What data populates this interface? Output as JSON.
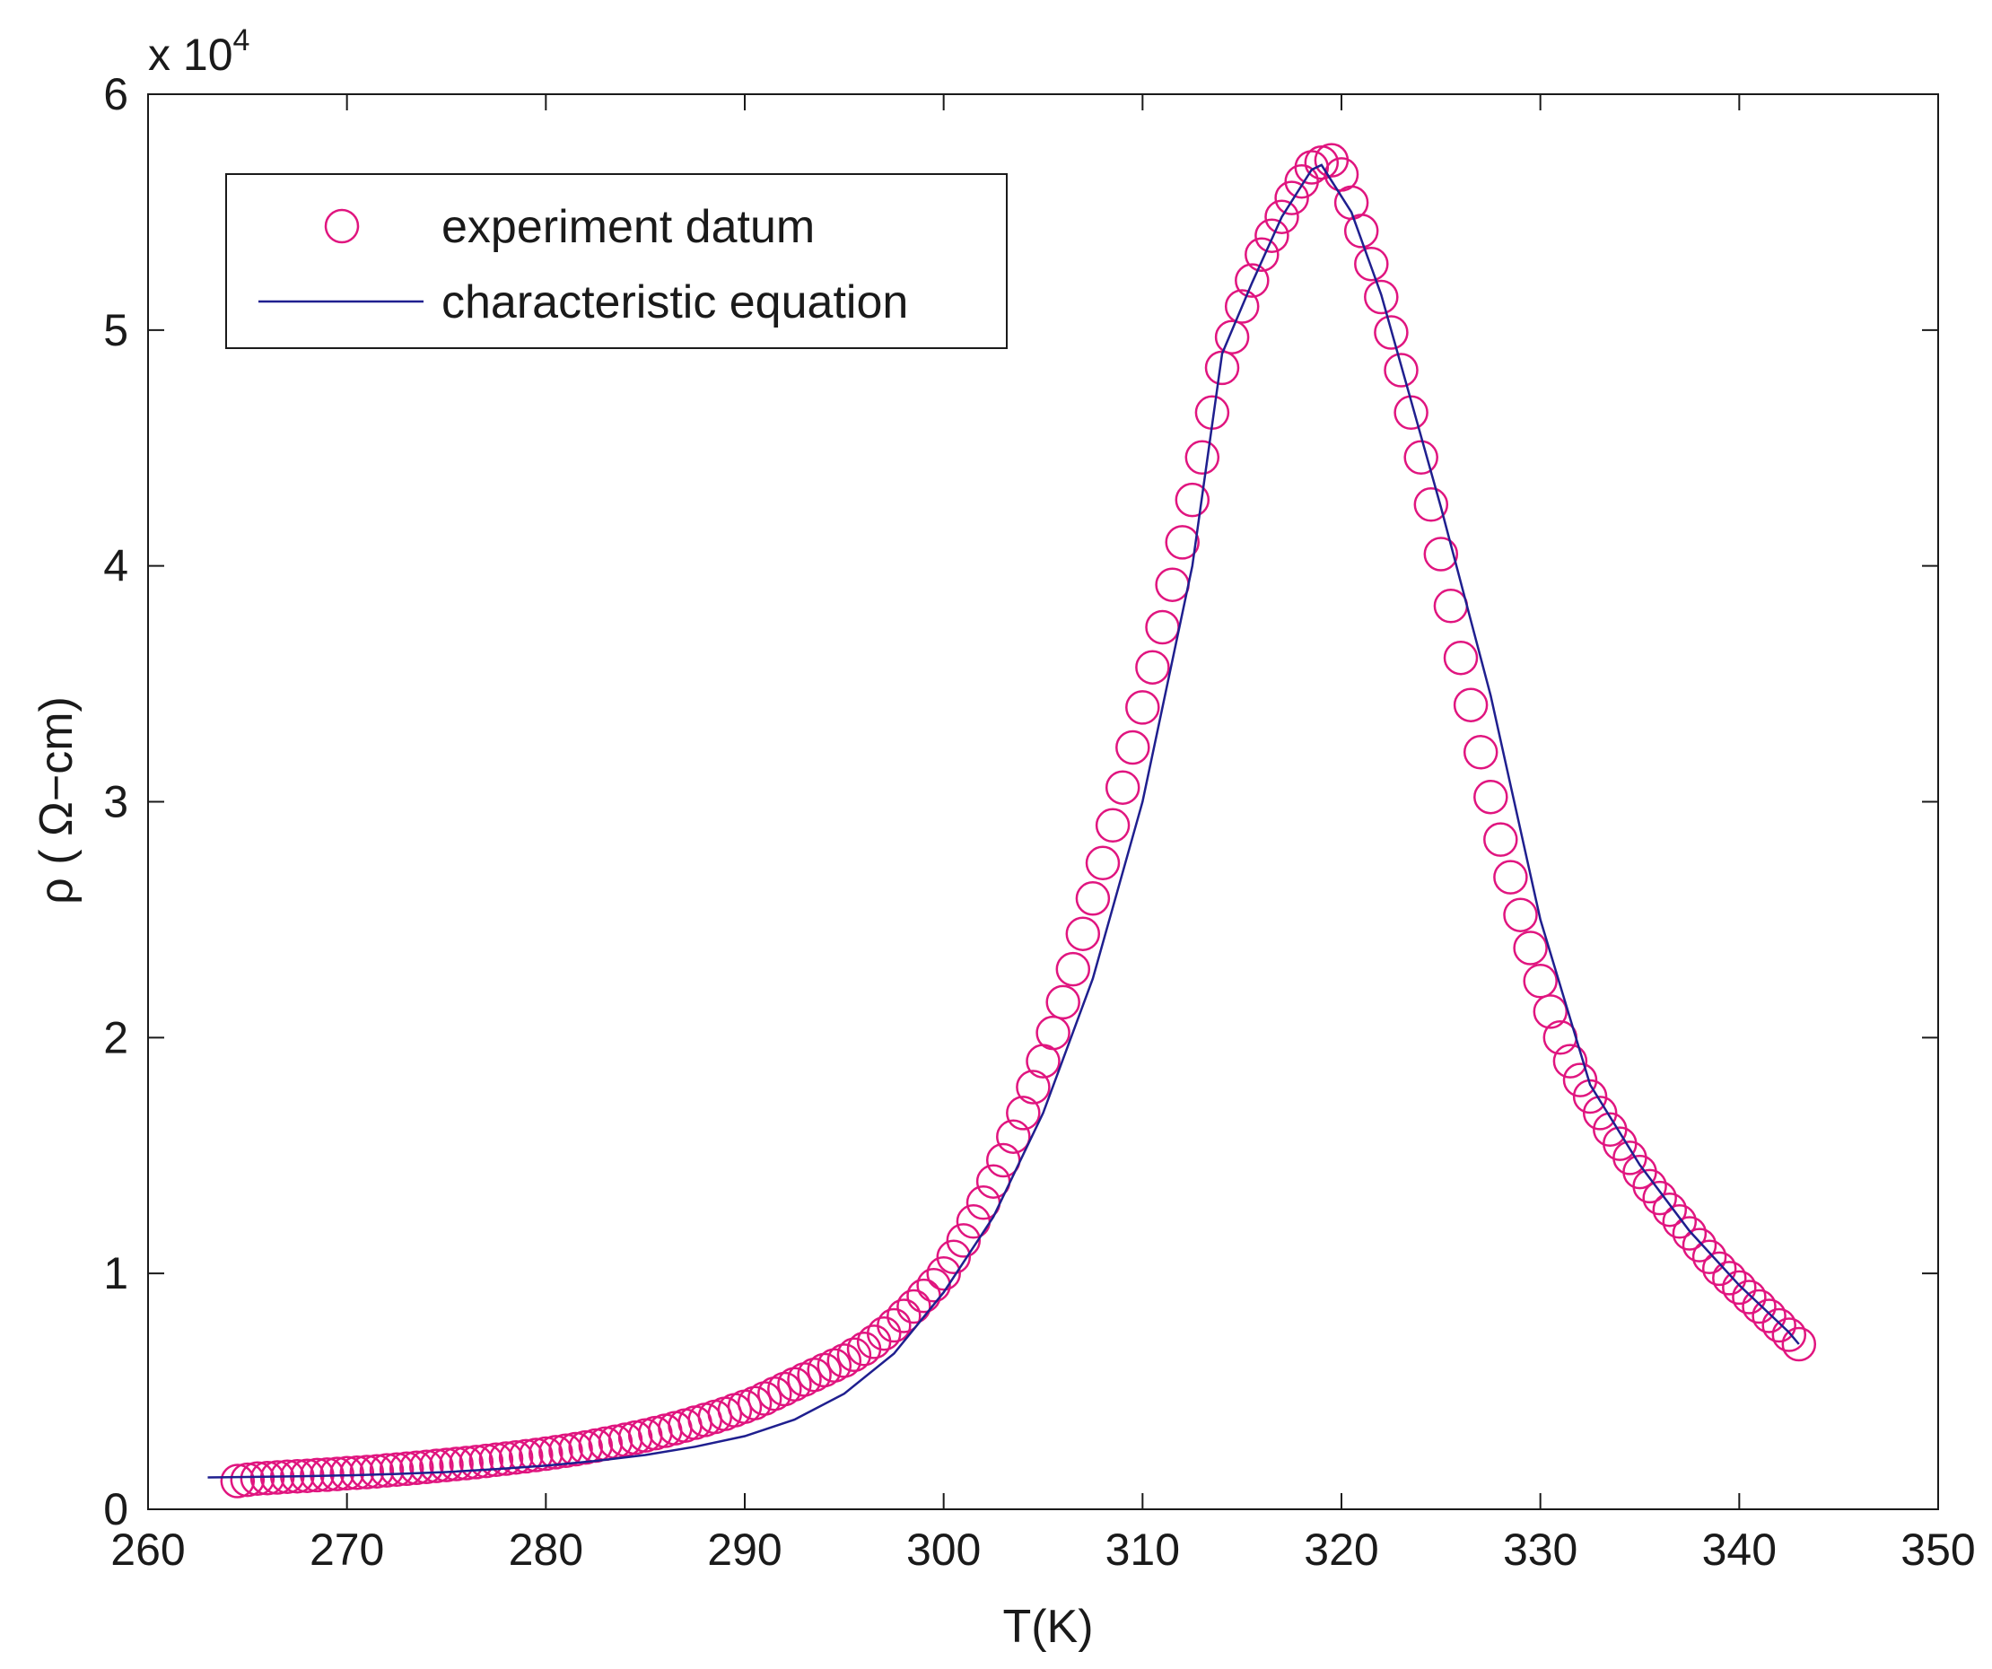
{
  "chart_data": {
    "type": "scatter",
    "title": "",
    "xlabel": "T(K)",
    "ylabel": "ρ ( Ω−cm)",
    "y_multiplier_label": "x 10",
    "y_multiplier_exponent": "4",
    "xlim": [
      260,
      350
    ],
    "ylim": [
      0,
      60000
    ],
    "x_ticks": [
      260,
      270,
      280,
      290,
      300,
      310,
      320,
      330,
      340,
      350
    ],
    "y_ticks": [
      0,
      10000,
      20000,
      30000,
      40000,
      50000,
      60000
    ],
    "x_tick_labels": [
      "260",
      "270",
      "280",
      "290",
      "300",
      "310",
      "320",
      "330",
      "340",
      "350"
    ],
    "y_tick_labels": [
      "0",
      "1",
      "2",
      "3",
      "4",
      "5",
      "6"
    ],
    "grid": false,
    "legend_position": "top-left",
    "series": [
      {
        "name": "experiment datum",
        "kind": "markers",
        "marker": "circle-open",
        "color": "#e0157f",
        "x": [
          264.5,
          265.0,
          265.5,
          266.0,
          266.5,
          267.0,
          267.5,
          268.0,
          268.5,
          269.0,
          269.5,
          270.0,
          270.5,
          271.0,
          271.5,
          272.0,
          272.5,
          273.0,
          273.5,
          274.0,
          274.5,
          275.0,
          275.5,
          276.0,
          276.5,
          277.0,
          277.5,
          278.0,
          278.5,
          279.0,
          279.5,
          280.0,
          280.5,
          281.0,
          281.5,
          282.0,
          282.5,
          283.0,
          283.5,
          284.0,
          284.5,
          285.0,
          285.5,
          286.0,
          286.5,
          287.0,
          287.5,
          288.0,
          288.5,
          289.0,
          289.5,
          290.0,
          290.5,
          291.0,
          291.5,
          292.0,
          292.5,
          293.0,
          293.5,
          294.0,
          294.5,
          295.0,
          295.5,
          296.0,
          296.5,
          297.0,
          297.5,
          298.0,
          298.5,
          299.0,
          299.5,
          300.0,
          300.5,
          301.0,
          301.5,
          302.0,
          302.5,
          303.0,
          303.5,
          304.0,
          304.5,
          305.0,
          305.5,
          306.0,
          306.5,
          307.0,
          307.5,
          308.0,
          308.5,
          309.0,
          309.5,
          310.0,
          310.5,
          311.0,
          311.5,
          312.0,
          312.5,
          313.0,
          313.5,
          314.0,
          314.5,
          315.0,
          315.5,
          316.0,
          316.5,
          317.0,
          317.5,
          318.0,
          318.5,
          319.0,
          319.5,
          320.0,
          320.5,
          321.0,
          321.5,
          322.0,
          322.5,
          323.0,
          323.5,
          324.0,
          324.5,
          325.0,
          325.5,
          326.0,
          326.5,
          327.0,
          327.5,
          328.0,
          328.5,
          329.0,
          329.5,
          330.0,
          330.5,
          331.0,
          331.5,
          332.0,
          332.5,
          333.0,
          333.5,
          334.0,
          334.5,
          335.0,
          335.5,
          336.0,
          336.5,
          337.0,
          337.5,
          338.0,
          338.5,
          339.0,
          339.5,
          340.0,
          340.5,
          341.0,
          341.5,
          342.0,
          342.5,
          343.0
        ],
        "y": [
          1200,
          1250,
          1300,
          1320,
          1350,
          1380,
          1400,
          1420,
          1450,
          1470,
          1500,
          1530,
          1550,
          1580,
          1610,
          1650,
          1680,
          1720,
          1760,
          1800,
          1840,
          1880,
          1920,
          1960,
          2000,
          2050,
          2100,
          2150,
          2200,
          2250,
          2300,
          2360,
          2420,
          2480,
          2550,
          2620,
          2700,
          2780,
          2860,
          2950,
          3040,
          3130,
          3230,
          3330,
          3440,
          3550,
          3670,
          3790,
          3920,
          4050,
          4200,
          4350,
          4500,
          4700,
          4900,
          5100,
          5300,
          5500,
          5700,
          5900,
          6100,
          6300,
          6550,
          6800,
          7100,
          7450,
          7800,
          8200,
          8600,
          9050,
          9500,
          10000,
          10700,
          11400,
          12200,
          13000,
          13900,
          14800,
          15800,
          16800,
          17900,
          19000,
          20200,
          21500,
          22900,
          24400,
          25900,
          27400,
          29000,
          30600,
          32300,
          34000,
          35700,
          37400,
          39200,
          41000,
          42800,
          44600,
          46500,
          48400,
          49700,
          51000,
          52100,
          53200,
          54000,
          54800,
          55600,
          56300,
          56900,
          57100,
          57200,
          56600,
          55400,
          54200,
          52800,
          51400,
          49900,
          48300,
          46500,
          44600,
          42600,
          40500,
          38300,
          36100,
          34100,
          32100,
          30200,
          28400,
          26800,
          25200,
          23800,
          22400,
          21100,
          20000,
          19000,
          18200,
          17500,
          16800,
          16100,
          15500,
          14900,
          14300,
          13700,
          13200,
          12700,
          12200,
          11700,
          11200,
          10700,
          10200,
          9800,
          9400,
          9000,
          8600,
          8200,
          7800,
          7400,
          7000
        ]
      },
      {
        "name": "characteristic equation",
        "kind": "line",
        "color": "#1f1f8f",
        "x": [
          263.0,
          265.0,
          267.5,
          270.0,
          272.5,
          275.0,
          277.5,
          280.0,
          282.5,
          285.0,
          287.5,
          290.0,
          292.5,
          295.0,
          297.5,
          300.0,
          302.5,
          305.0,
          307.5,
          310.0,
          312.5,
          314.0,
          315.5,
          317.0,
          318.5,
          319.0,
          320.5,
          322.0,
          323.5,
          325.0,
          327.5,
          330.0,
          332.5,
          335.0,
          337.5,
          340.0,
          342.5,
          343.0
        ],
        "y": [
          1350,
          1370,
          1400,
          1440,
          1500,
          1580,
          1700,
          1850,
          2050,
          2300,
          2650,
          3100,
          3800,
          4900,
          6600,
          9200,
          12400,
          16800,
          22500,
          30000,
          40000,
          49000,
          52000,
          54800,
          56800,
          57000,
          55000,
          51500,
          47000,
          42500,
          34500,
          25000,
          18000,
          14600,
          11800,
          9500,
          7500,
          7000
        ]
      }
    ]
  }
}
